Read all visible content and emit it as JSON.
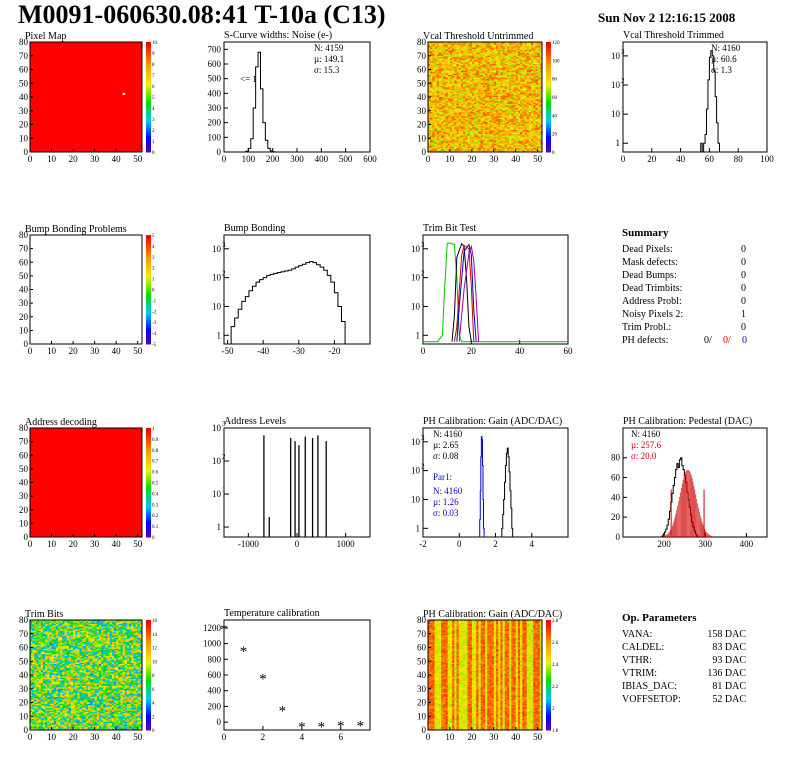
{
  "header": {
    "title": "M0091-060630.08:41 T-10a (C13)",
    "date": "Sun Nov  2 12:16:15 2008"
  },
  "chart_data": [
    {
      "id": "pixel_map",
      "type": "heatmap",
      "title": "Pixel Map",
      "xlim": [
        0,
        52
      ],
      "ylim": [
        0,
        80
      ],
      "xticks": [
        0,
        10,
        20,
        30,
        40,
        50
      ],
      "yticks": [
        0,
        10,
        20,
        30,
        40,
        50,
        60,
        70,
        80
      ],
      "zticks": [
        0,
        1,
        2,
        3,
        4,
        5,
        6,
        7,
        8,
        9,
        10
      ],
      "fill": "uniform",
      "value": 10,
      "annotations": []
    },
    {
      "id": "noise",
      "type": "bar",
      "title": "S-Curve widths: Noise (e-)",
      "xlim": [
        0,
        600
      ],
      "ylim": [
        0,
        750
      ],
      "log_y": false,
      "xticks": [
        0,
        100,
        200,
        300,
        400,
        500,
        600
      ],
      "yticks": [
        0,
        100,
        200,
        300,
        400,
        500,
        600,
        700
      ],
      "stats": [
        "N: 4159",
        "µ: 149.1",
        "σ: 15.3"
      ],
      "text": "<= 1",
      "hist": {
        "start": 80,
        "width": 10,
        "values": [
          0,
          5,
          25,
          90,
          300,
          580,
          680,
          430,
          200,
          80,
          25,
          8,
          2,
          0
        ]
      }
    },
    {
      "id": "vcal_untrimmed",
      "type": "heatmap",
      "title": "Vcal Threshold Untrimmed",
      "xlim": [
        0,
        52
      ],
      "ylim": [
        0,
        80
      ],
      "xticks": [
        0,
        10,
        20,
        30,
        40,
        50
      ],
      "yticks": [
        0,
        10,
        20,
        30,
        40,
        50,
        60,
        70,
        80
      ],
      "zticks": [
        0,
        20,
        40,
        60,
        80,
        100,
        120
      ],
      "fill": "noise_orange"
    },
    {
      "id": "vcal_trimmed",
      "type": "bar",
      "title": "Vcal Threshold Trimmed",
      "xlim": [
        0,
        100
      ],
      "ylim": [
        0.5,
        3000
      ],
      "log_y": true,
      "xticks": [
        0,
        20,
        40,
        60,
        80,
        100
      ],
      "stats": [
        "N: 4160",
        "µ: 60.6",
        "σ: 1.3"
      ],
      "hist": {
        "start": 53,
        "width": 1,
        "values": [
          0,
          1,
          0,
          1,
          2,
          15,
          150,
          900,
          1500,
          1000,
          300,
          40,
          5,
          1,
          0
        ]
      }
    },
    {
      "id": "bump_map",
      "type": "heatmap",
      "title": "Bump Bonding Problems",
      "xlim": [
        0,
        52
      ],
      "ylim": [
        0,
        80
      ],
      "xticks": [
        0,
        10,
        20,
        30,
        40,
        50
      ],
      "yticks": [
        0,
        10,
        20,
        30,
        40,
        50,
        60,
        70,
        80
      ],
      "zticks": [
        -5,
        -4,
        -3,
        -2,
        -1,
        0,
        1,
        2,
        3,
        4,
        5
      ],
      "fill": "empty"
    },
    {
      "id": "bump_bonding",
      "type": "bar",
      "title": "Bump Bonding",
      "xlim": [
        -51,
        -10
      ],
      "ylim": [
        0.5,
        3000
      ],
      "log_y": true,
      "xticks": [
        -50,
        -40,
        -30,
        -20
      ],
      "hist": {
        "start": -50,
        "width": 1,
        "values": [
          0,
          2,
          4,
          8,
          15,
          22,
          35,
          50,
          70,
          85,
          100,
          120,
          130,
          140,
          150,
          160,
          170,
          180,
          200,
          230,
          260,
          290,
          330,
          360,
          330,
          280,
          230,
          180,
          120,
          70,
          30,
          10,
          3,
          0
        ]
      }
    },
    {
      "id": "trim_bits_test",
      "type": "line",
      "title": "Trim Bit Test",
      "xlim": [
        0,
        60
      ],
      "ylim": [
        0.5,
        3000
      ],
      "log_y": true,
      "xticks": [
        0,
        20,
        40,
        60
      ],
      "series": [
        {
          "color": "#00c000",
          "points": [
            [
              0,
              0.6
            ],
            [
              6,
              0.6
            ],
            [
              8,
              1
            ],
            [
              9,
              50
            ],
            [
              10,
              1500
            ],
            [
              11,
              1600
            ],
            [
              13,
              1400
            ],
            [
              14,
              100
            ],
            [
              15,
              1
            ],
            [
              16,
              0.6
            ],
            [
              60,
              0.6
            ]
          ]
        },
        {
          "color": "#000000",
          "points": [
            [
              12,
              0.6
            ],
            [
              13,
              5
            ],
            [
              14,
              500
            ],
            [
              16,
              1500
            ],
            [
              17,
              1200
            ],
            [
              18,
              100
            ],
            [
              19,
              2
            ],
            [
              20,
              0.6
            ]
          ]
        },
        {
          "color": "#d00000",
          "points": [
            [
              13,
              0.6
            ],
            [
              14,
              2
            ],
            [
              16,
              600
            ],
            [
              17,
              1300
            ],
            [
              19,
              1000
            ],
            [
              20,
              50
            ],
            [
              21,
              0.6
            ]
          ]
        },
        {
          "color": "#0000d0",
          "points": [
            [
              14,
              0.6
            ],
            [
              15,
              10
            ],
            [
              17,
              800
            ],
            [
              19,
              1400
            ],
            [
              20,
              600
            ],
            [
              21,
              8
            ],
            [
              22,
              0.6
            ]
          ]
        },
        {
          "color": "#a000a0",
          "points": [
            [
              15,
              0.6
            ],
            [
              17,
              40
            ],
            [
              19,
              700
            ],
            [
              20,
              1200
            ],
            [
              21,
              400
            ],
            [
              22,
              20
            ],
            [
              23,
              0.6
            ]
          ]
        }
      ]
    },
    {
      "id": "summary",
      "type": "table",
      "title": "Summary",
      "rows": [
        {
          "label": "Dead Pixels:",
          "value": "0"
        },
        {
          "label": "Mask defects:",
          "value": "0"
        },
        {
          "label": "Dead Bumps:",
          "value": "0"
        },
        {
          "label": "Dead Trimbits:",
          "value": "0"
        },
        {
          "label": "Address Probl:",
          "value": "0"
        },
        {
          "label": "Noisy Pixels 2:",
          "value": "1"
        },
        {
          "label": "Trim Probl.:",
          "value": "0"
        }
      ],
      "ph_defects": {
        "label": "PH defects:",
        "values": [
          "0/",
          "0/",
          "0"
        ],
        "colors": [
          "#000000",
          "#d00000",
          "#0000d0"
        ]
      }
    },
    {
      "id": "address_decoding",
      "type": "heatmap",
      "title": "Address decoding",
      "xlim": [
        0,
        52
      ],
      "ylim": [
        0,
        80
      ],
      "xticks": [
        0,
        10,
        20,
        30,
        40,
        50
      ],
      "yticks": [
        0,
        10,
        20,
        30,
        40,
        50,
        60,
        70,
        80
      ],
      "zticks": [
        0,
        0.1,
        0.2,
        0.3,
        0.4,
        0.5,
        0.6,
        0.7,
        0.8,
        0.9,
        1
      ],
      "fill": "uniform",
      "value": 1
    },
    {
      "id": "address_levels",
      "type": "bar",
      "title": "Address Levels",
      "xlim": [
        -1500,
        1500
      ],
      "ylim": [
        0.5,
        1000
      ],
      "log_y": true,
      "xticks": [
        -1000,
        0,
        1000
      ],
      "spikes": [
        [
          -680,
          600
        ],
        [
          -570,
          2
        ],
        [
          -130,
          500
        ],
        [
          -40,
          400
        ],
        [
          40,
          300
        ],
        [
          170,
          550
        ],
        [
          320,
          500
        ],
        [
          430,
          600
        ],
        [
          600,
          400
        ]
      ]
    },
    {
      "id": "ph_gain_hist",
      "type": "bar",
      "title": "PH Calibration: Gain (ADC/DAC)",
      "xlim": [
        -2,
        6
      ],
      "ylim": [
        0.5,
        3000
      ],
      "log_y": true,
      "xticks": [
        -2,
        0,
        2,
        4
      ],
      "stats": [
        "N: 4160",
        "µ: 2.65",
        "σ: 0.08"
      ],
      "stats2_title": "Par1:",
      "stats2": [
        "N: 4160",
        "µ: 1.26",
        "σ: 0.03"
      ],
      "series": [
        {
          "color": "#000000",
          "start": 2.3,
          "width": 0.05,
          "values": [
            0,
            1,
            3,
            10,
            40,
            150,
            400,
            600,
            300,
            90,
            20,
            5,
            1,
            0
          ]
        },
        {
          "color": "#0000d0",
          "start": 1.1,
          "width": 0.03,
          "values": [
            0,
            2,
            20,
            300,
            1500,
            1200,
            150,
            10,
            1,
            0
          ]
        }
      ]
    },
    {
      "id": "ph_pedestal",
      "type": "bar",
      "title": "PH Calibration: Pedestal (DAC)",
      "xlim": [
        100,
        450
      ],
      "ylim": [
        0,
        110
      ],
      "xticks": [
        200,
        300,
        400
      ],
      "yticks": [
        0,
        20,
        40,
        60,
        80
      ],
      "stats": [
        "N: 4160",
        "µ: 257.6",
        "σ: 20.0"
      ],
      "stat_colors": [
        "#000000",
        "#d00000",
        "#d00000"
      ],
      "gauss": {
        "mean": 257.6,
        "sigma": 20,
        "amp": 68
      },
      "red_lines": [
        217,
        297
      ],
      "hist": {
        "start": 195,
        "width": 3,
        "values": [
          1,
          3,
          5,
          8,
          12,
          18,
          26,
          35,
          44,
          52,
          60,
          68,
          74,
          70,
          78,
          80,
          72,
          68,
          62,
          55,
          45,
          38,
          30,
          22,
          15,
          10,
          6,
          3,
          1
        ]
      }
    },
    {
      "id": "trim_bits",
      "type": "heatmap",
      "title": "Trim Bits",
      "xlim": [
        0,
        52
      ],
      "ylim": [
        0,
        80
      ],
      "xticks": [
        0,
        10,
        20,
        30,
        40,
        50
      ],
      "yticks": [
        0,
        10,
        20,
        30,
        40,
        50,
        60,
        70,
        80
      ],
      "zticks": [
        0,
        2,
        4,
        6,
        8,
        10,
        12,
        14,
        16
      ],
      "fill": "noise_green"
    },
    {
      "id": "temperature",
      "type": "scatter",
      "title": "Temperature calibration",
      "xlim": [
        0,
        7.5
      ],
      "ylim": [
        -100,
        1300
      ],
      "xticks": [
        0,
        2,
        4,
        6
      ],
      "yticks": [
        0,
        200,
        400,
        600,
        800,
        1000,
        1200
      ],
      "x": [
        0,
        1,
        2,
        3,
        4,
        5,
        6,
        7
      ],
      "y": [
        1200,
        920,
        570,
        160,
        -40,
        -40,
        -30,
        -30
      ]
    },
    {
      "id": "ph_gain_map",
      "type": "heatmap",
      "title": "PH Calibration: Gain (ADC/DAC)",
      "xlim": [
        0,
        52
      ],
      "ylim": [
        0,
        80
      ],
      "xticks": [
        0,
        10,
        20,
        30,
        40,
        50
      ],
      "yticks": [
        0,
        10,
        20,
        30,
        40,
        50,
        60,
        70,
        80
      ],
      "zticks": [
        1.8,
        2,
        2.2,
        2.4,
        2.6,
        2.8
      ],
      "fill": "columns"
    },
    {
      "id": "op_params",
      "type": "table",
      "title": "Op. Parameters",
      "rows": [
        {
          "label": "VANA:",
          "value": "158 DAC"
        },
        {
          "label": "CALDEL:",
          "value": "83 DAC"
        },
        {
          "label": "VTHR:",
          "value": "93 DAC"
        },
        {
          "label": "VTRIM:",
          "value": "136 DAC"
        },
        {
          "label": "IBIAS_DAC:",
          "value": "81 DAC"
        },
        {
          "label": "VOFFSETOP:",
          "value": "52 DAC"
        }
      ]
    }
  ]
}
